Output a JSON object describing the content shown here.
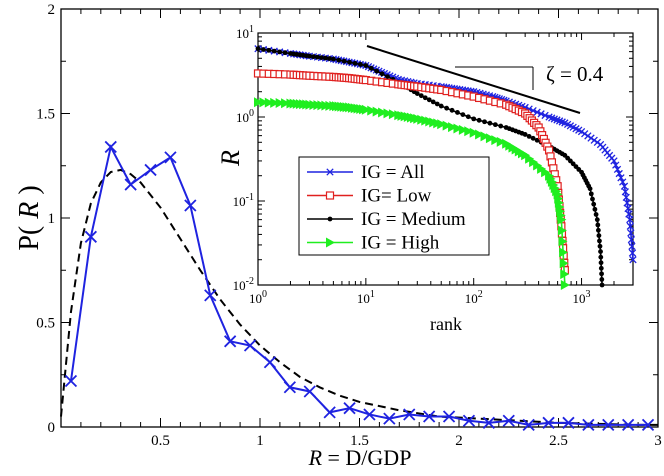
{
  "chart_data": [
    {
      "type": "line",
      "xlabel_parts": [
        "R",
        " = D/GDP"
      ],
      "ylabel_parts": [
        "P( ",
        "R",
        " )"
      ],
      "xlim": [
        0,
        3
      ],
      "ylim": [
        0,
        2
      ],
      "x_ticks": [
        "0.5",
        "1",
        "1.5",
        "2",
        "2.5",
        "3"
      ],
      "y_ticks": [
        "0",
        "0.5",
        "1",
        "1.5",
        "2"
      ],
      "series": [
        {
          "marker": "x",
          "color": "#1f23e0",
          "x": [
            0.05,
            0.15,
            0.25,
            0.35,
            0.45,
            0.55,
            0.65,
            0.75,
            0.85,
            0.95,
            1.05,
            1.15,
            1.25,
            1.35,
            1.45,
            1.55,
            1.65,
            1.75,
            1.85,
            1.95,
            2.05,
            2.15,
            2.25,
            2.35,
            2.45,
            2.55,
            2.65,
            2.75,
            2.85,
            2.95
          ],
          "y": [
            0.22,
            0.91,
            1.34,
            1.16,
            1.23,
            1.29,
            1.06,
            0.63,
            0.41,
            0.39,
            0.31,
            0.19,
            0.17,
            0.07,
            0.09,
            0.06,
            0.04,
            0.06,
            0.05,
            0.05,
            0.03,
            0.02,
            0.03,
            0.01,
            0.02,
            0.02,
            0.01,
            0.01,
            0.01,
            0.01
          ]
        },
        {
          "style": "dashed",
          "color": "#000000",
          "x": [
            0.0,
            0.05,
            0.1,
            0.15,
            0.2,
            0.25,
            0.3,
            0.35,
            0.4,
            0.5,
            0.6,
            0.7,
            0.8,
            0.9,
            1.0,
            1.1,
            1.2,
            1.3,
            1.4,
            1.5,
            1.7,
            1.9,
            2.1,
            2.3,
            2.5,
            2.7,
            2.9,
            3.0
          ],
          "y": [
            0.05,
            0.55,
            0.88,
            1.07,
            1.17,
            1.22,
            1.23,
            1.21,
            1.17,
            1.05,
            0.9,
            0.75,
            0.61,
            0.49,
            0.39,
            0.31,
            0.24,
            0.19,
            0.15,
            0.12,
            0.08,
            0.05,
            0.04,
            0.03,
            0.02,
            0.015,
            0.01,
            0.01
          ]
        }
      ]
    },
    {
      "type": "line",
      "scale": "log-log",
      "xlabel": "rank",
      "ylabel": "R",
      "xlim": [
        1,
        3000
      ],
      "ylim": [
        0.01,
        10
      ],
      "x_ticks": [
        {
          "base": "10",
          "exp": "0"
        },
        {
          "base": "10",
          "exp": "1"
        },
        {
          "base": "10",
          "exp": "2"
        },
        {
          "base": "10",
          "exp": "3"
        }
      ],
      "y_ticks": [
        {
          "base": "10",
          "exp": "-2"
        },
        {
          "base": "10",
          "exp": "-1"
        },
        {
          "base": "10",
          "exp": "0"
        },
        {
          "base": "10",
          "exp": "1"
        }
      ],
      "annotation": "ζ = 0.4",
      "legend_position": "center-left",
      "series": [
        {
          "name": "IG = All",
          "color": "#1f23e0",
          "marker": "x",
          "x": [
            1,
            2,
            3,
            5,
            7,
            10,
            14,
            20,
            30,
            50,
            70,
            100,
            150,
            200,
            300,
            500,
            700,
            1000,
            1500,
            2000,
            2500,
            2800,
            3000
          ],
          "y": [
            6.5,
            5.7,
            5.3,
            4.9,
            4.5,
            4.1,
            3.4,
            2.8,
            2.5,
            2.3,
            2.15,
            2.0,
            1.75,
            1.55,
            1.3,
            1.0,
            0.85,
            0.67,
            0.47,
            0.3,
            0.15,
            0.06,
            0.02
          ]
        },
        {
          "name": "IG= Low",
          "color": "#e0201f",
          "marker": "square",
          "x": [
            1,
            2,
            3,
            5,
            7,
            10,
            20,
            30,
            50,
            100,
            200,
            300,
            400,
            500,
            600,
            650,
            700
          ],
          "y": [
            3.3,
            3.2,
            3.1,
            3.0,
            2.9,
            2.75,
            2.45,
            2.3,
            2.1,
            1.75,
            1.4,
            1.1,
            0.75,
            0.4,
            0.15,
            0.05,
            0.015
          ]
        },
        {
          "name": "IG = Medium",
          "color": "#000000",
          "marker": "dot",
          "x": [
            1,
            2,
            3,
            5,
            10,
            20,
            30,
            50,
            100,
            200,
            300,
            500,
            700,
            1000,
            1200,
            1400,
            1500,
            1550
          ],
          "y": [
            6.5,
            5.7,
            5.3,
            4.9,
            4.1,
            2.6,
            1.9,
            1.35,
            0.95,
            0.75,
            0.62,
            0.45,
            0.35,
            0.22,
            0.14,
            0.06,
            0.025,
            0.01
          ]
        },
        {
          "name": "IG = High",
          "color": "#1fee1f",
          "marker": "triangle",
          "x": [
            1,
            2,
            3,
            5,
            7,
            10,
            20,
            30,
            50,
            100,
            200,
            300,
            500,
            600,
            650,
            700
          ],
          "y": [
            1.5,
            1.45,
            1.4,
            1.35,
            1.3,
            1.22,
            1.05,
            0.95,
            0.82,
            0.65,
            0.48,
            0.35,
            0.2,
            0.12,
            0.06,
            0.01
          ]
        }
      ]
    }
  ]
}
